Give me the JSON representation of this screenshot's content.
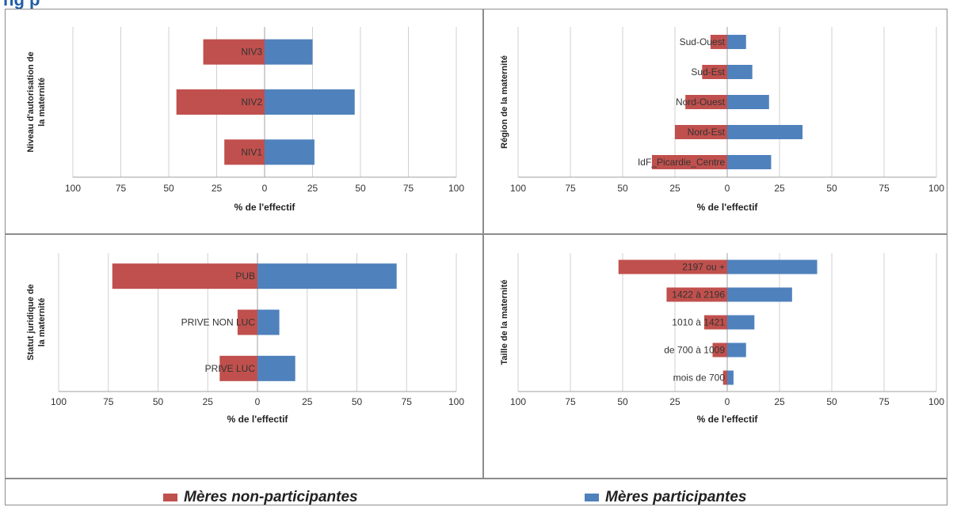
{
  "page": {
    "header_fragment": "ng p"
  },
  "colors": {
    "non_participantes": "#c0504d",
    "participantes": "#4f81bd",
    "grid": "#d0d0d0",
    "axis": "#a0a0a0"
  },
  "legend": {
    "non_participantes": "Mères non-participantes",
    "participantes": "Mères participantes"
  },
  "chart_data": [
    {
      "type": "bar",
      "orientation": "horizontal-diverging",
      "ylabel": "Niveau d'autorisation de la maternité",
      "xlabel": "% de l'effectif",
      "xlim": [
        -100,
        100
      ],
      "xticks": [
        "100",
        "75",
        "50",
        "25",
        "0",
        "25",
        "50",
        "75",
        "100"
      ],
      "categories": [
        "NIV3",
        "NIV2",
        "NIV1"
      ],
      "series": [
        {
          "values": [
            32,
            46,
            21
          ]
        },
        {
          "values": [
            25,
            47,
            26
          ]
        }
      ],
      "grid": true
    },
    {
      "type": "bar",
      "orientation": "horizontal-diverging",
      "ylabel": "Région de la maternité",
      "xlabel": "% de l'effectif",
      "xlim": [
        -100,
        100
      ],
      "xticks": [
        "100",
        "75",
        "50",
        "25",
        "0",
        "25",
        "50",
        "75",
        "100"
      ],
      "categories": [
        "Sud-Ouest",
        "Sud-Est",
        "Nord-Ouest",
        "Nord-Est",
        "IdF_Picardie_Centre"
      ],
      "series": [
        {
          "values": [
            8,
            12,
            20,
            25,
            36
          ]
        },
        {
          "values": [
            9,
            12,
            20,
            36,
            21
          ]
        }
      ],
      "grid": true
    },
    {
      "type": "bar",
      "orientation": "horizontal-diverging",
      "ylabel": "Statut juridique de la maternité",
      "xlabel": "% de l'effectif",
      "xlim": [
        -100,
        100
      ],
      "xticks": [
        "100",
        "75",
        "50",
        "25",
        "0",
        "25",
        "50",
        "75",
        "100"
      ],
      "categories": [
        "PUB",
        "PRIVE NON LUC",
        "PRIVE LUC"
      ],
      "series": [
        {
          "values": [
            73,
            10,
            19
          ]
        },
        {
          "values": [
            70,
            11,
            19
          ]
        }
      ],
      "grid": true
    },
    {
      "type": "bar",
      "orientation": "horizontal-diverging",
      "ylabel": "Taille de la maternité",
      "xlabel": "% de l'effectif",
      "xlim": [
        -100,
        100
      ],
      "xticks": [
        "100",
        "75",
        "50",
        "25",
        "0",
        "25",
        "50",
        "75",
        "100"
      ],
      "categories": [
        "2197 ou +",
        "1422 à 2196",
        "1010 à 1421",
        "de 700 à 1009",
        "mois de 700"
      ],
      "series": [
        {
          "values": [
            52,
            29,
            11,
            7,
            2
          ]
        },
        {
          "values": [
            43,
            31,
            13,
            9,
            3
          ]
        }
      ],
      "grid": true
    }
  ]
}
